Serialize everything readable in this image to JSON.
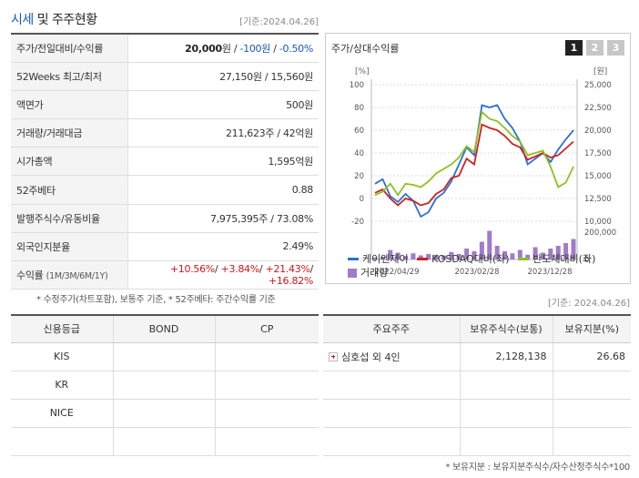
{
  "header": {
    "title_part1": "시세",
    "title_part2": "및 주주현황",
    "basedate": "[기준:2024.04.26]"
  },
  "quote": {
    "rows": [
      {
        "label": "주가/전일대비/수익률",
        "price": "20,000",
        "unit": "원",
        "change": "-100원",
        "rate": "-0.50%"
      },
      {
        "label": "52Weeks 최고/최저",
        "value": "27,150원 / 15,560원"
      },
      {
        "label": "액면가",
        "value": "500원"
      },
      {
        "label": "거래량/거래대금",
        "value": "211,623주 / 42억원"
      },
      {
        "label": "시가총액",
        "value": "1,595억원"
      },
      {
        "label": "52주베타",
        "value": "0.88"
      },
      {
        "label": "발행주식수/유동비율",
        "value": "7,975,395주 / 73.08%"
      },
      {
        "label": "외국인지분율",
        "value": "2.49%"
      }
    ],
    "returns": {
      "label": "수익률",
      "sub": "(1M/3M/6M/1Y)",
      "r1m": "+10.56%",
      "r3m": "+3.84%",
      "r6m": "+21.43%",
      "r1y": "+16.82%"
    }
  },
  "note1": "* 수정주가(차트포함), 보통주 기준, * 52주베타: 주간수익률 기준",
  "chartbox": {
    "title": "주가/상대수익률",
    "pages": [
      "1",
      "2",
      "3"
    ],
    "active_page": "1"
  },
  "chart_data": {
    "type": "line",
    "y_left_unit": "[%]",
    "y_right_unit": "[원]",
    "y_left_ticks": [
      "100",
      "80",
      "60",
      "40",
      "20",
      "0",
      "-20"
    ],
    "y_right_ticks": [
      "25,000",
      "22,500",
      "20,000",
      "17,500",
      "15,000",
      "12,500",
      "10,000"
    ],
    "y2_ticks": [
      "200,000",
      "0"
    ],
    "ylim_left": [
      -20,
      100
    ],
    "ylim_right": [
      10000,
      25000
    ],
    "x_ticks": [
      "2022/04/29",
      "2023/02/28",
      "2023/12/28"
    ],
    "series": [
      {
        "name": "케이엔제이",
        "color": "#2e6fd6",
        "values": [
          13,
          17,
          2,
          -3,
          4,
          -2,
          -16,
          -12,
          0,
          5,
          15,
          30,
          45,
          38,
          82,
          80,
          82,
          70,
          62,
          50,
          30,
          35,
          40,
          32,
          43,
          52,
          60
        ]
      },
      {
        "name": "KOSDAQ대비(좌)",
        "color": "#cc2222",
        "values": [
          5,
          8,
          0,
          -6,
          0,
          -2,
          -6,
          -4,
          4,
          8,
          18,
          20,
          35,
          30,
          65,
          62,
          60,
          55,
          48,
          45,
          34,
          37,
          40,
          36,
          38,
          44,
          50
        ]
      },
      {
        "name": "반도체대비(좌)",
        "color": "#8cc21f",
        "values": [
          3,
          6,
          13,
          3,
          13,
          12,
          10,
          15,
          22,
          26,
          30,
          36,
          46,
          41,
          76,
          70,
          68,
          62,
          55,
          50,
          38,
          40,
          42,
          28,
          10,
          14,
          28
        ]
      }
    ],
    "volume": {
      "name": "거래량",
      "color": "#a07cc8",
      "ylim": [
        0,
        200000
      ],
      "values": [
        15000,
        20000,
        70000,
        50000,
        25000,
        45000,
        30000,
        40000,
        35000,
        30000,
        55000,
        40000,
        80000,
        60000,
        130000,
        220000,
        100000,
        60000,
        45000,
        70000,
        35000,
        90000,
        50000,
        80000,
        100000,
        120000,
        150000
      ]
    }
  },
  "legend": {
    "s1": "케이엔제이",
    "s2": "KOSDAQ대비(좌)",
    "s3": "반도체대비(좌)",
    "s4": "거래량"
  },
  "date2": "[기준: 2024.04.26]",
  "credit": {
    "headers": [
      "신용등급",
      "BOND",
      "CP"
    ],
    "rows": [
      [
        "KIS",
        "",
        ""
      ],
      [
        "KR",
        "",
        ""
      ],
      [
        "NICE",
        "",
        ""
      ],
      [
        "",
        "",
        ""
      ]
    ]
  },
  "holder": {
    "headers": [
      "주요주주",
      "보유주식수(보통)",
      "보유지분(%)"
    ],
    "rows": [
      [
        "심호섭 외 4인",
        "2,128,138",
        "26.68"
      ],
      [
        "",
        "",
        ""
      ],
      [
        "",
        "",
        ""
      ],
      [
        "",
        "",
        ""
      ]
    ]
  },
  "note2": "* 보유지분 : 보유지분주식수/자수산정주식수*100"
}
